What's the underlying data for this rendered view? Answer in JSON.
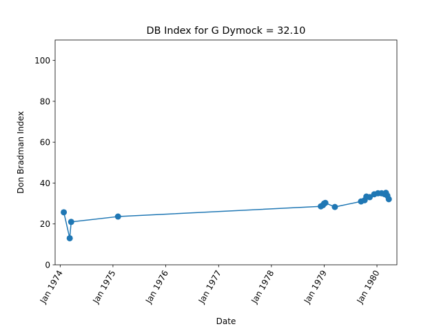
{
  "chart_data": {
    "type": "line",
    "title": "DB Index for G Dymock = 32.10",
    "xlabel": "Date",
    "ylabel": "Don Bradman Index",
    "ylim": [
      0,
      110
    ],
    "yticks": [
      0,
      20,
      40,
      60,
      80,
      100
    ],
    "xlim": [
      "1973-11-27",
      "1980-05-18"
    ],
    "xticks": [
      {
        "label": "Jan 1974",
        "date": "1974-01-01"
      },
      {
        "label": "Jan 1975",
        "date": "1975-01-01"
      },
      {
        "label": "Jan 1976",
        "date": "1976-01-01"
      },
      {
        "label": "Jan 1977",
        "date": "1977-01-01"
      },
      {
        "label": "Jan 1978",
        "date": "1978-01-01"
      },
      {
        "label": "Jan 1979",
        "date": "1979-01-01"
      },
      {
        "label": "Jan 1980",
        "date": "1980-01-01"
      }
    ],
    "grid": false,
    "series": [
      {
        "color": "#1f77b4",
        "points": [
          {
            "x": "1974-01-26",
            "y": 25.7
          },
          {
            "x": "1974-03-08",
            "y": 13.0
          },
          {
            "x": "1974-03-18",
            "y": 21.0
          },
          {
            "x": "1975-02-05",
            "y": 23.6
          },
          {
            "x": "1978-12-09",
            "y": 28.6
          },
          {
            "x": "1978-12-24",
            "y": 29.2
          },
          {
            "x": "1979-01-01",
            "y": 30.0
          },
          {
            "x": "1979-01-09",
            "y": 30.3
          },
          {
            "x": "1979-03-16",
            "y": 28.3
          },
          {
            "x": "1979-09-13",
            "y": 31.0
          },
          {
            "x": "1979-10-08",
            "y": 31.6
          },
          {
            "x": "1979-10-20",
            "y": 33.4
          },
          {
            "x": "1979-11-12",
            "y": 33.1
          },
          {
            "x": "1979-12-13",
            "y": 34.5
          },
          {
            "x": "1980-01-08",
            "y": 35.0
          },
          {
            "x": "1980-02-02",
            "y": 35.0
          },
          {
            "x": "1980-02-22",
            "y": 34.6
          },
          {
            "x": "1980-03-03",
            "y": 35.2
          },
          {
            "x": "1980-03-13",
            "y": 33.8
          },
          {
            "x": "1980-03-23",
            "y": 32.1
          }
        ]
      }
    ]
  }
}
